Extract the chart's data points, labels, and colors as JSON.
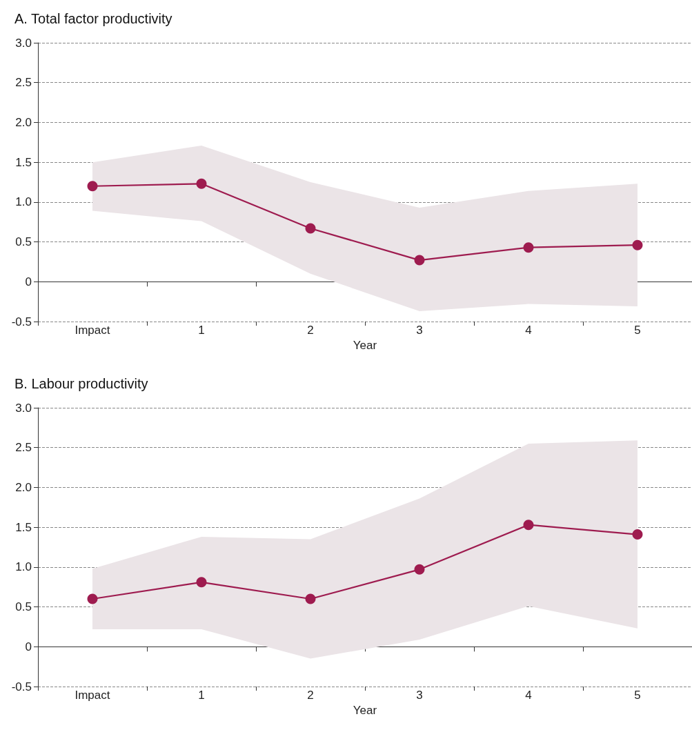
{
  "chart_data": [
    {
      "type": "line",
      "title": "A. Total factor productivity",
      "xlabel": "Year",
      "categories": [
        "Impact",
        "1",
        "2",
        "3",
        "4",
        "5"
      ],
      "series": [
        {
          "color": "#9e1b4f",
          "values": [
            1.2,
            1.23,
            0.67,
            0.27,
            0.43,
            0.46
          ],
          "lower": [
            0.89,
            0.76,
            0.1,
            -0.37,
            -0.28,
            -0.31
          ],
          "upper": [
            1.5,
            1.71,
            1.25,
            0.93,
            1.14,
            1.23
          ]
        }
      ],
      "ylim": [
        -0.5,
        3.0
      ],
      "yticks": [
        {
          "value": -0.5,
          "label": "-0.5"
        },
        0,
        {
          "value": 0.5,
          "label": "0.5"
        },
        {
          "value": 1,
          "label": "1.0"
        },
        {
          "value": 1.5,
          "label": "1.5"
        },
        {
          "value": 2,
          "label": "2.0"
        },
        {
          "value": 2.5,
          "label": "2.5"
        },
        {
          "value": 3,
          "label": "3.0"
        }
      ],
      "grid": "y",
      "marker": "circle",
      "line_style": "solid"
    },
    {
      "type": "line",
      "title": "B. Labour productivity",
      "xlabel": "Year",
      "categories": [
        "Impact",
        "1",
        "2",
        "3",
        "4",
        "5"
      ],
      "series": [
        {
          "color": "#9e1b4f",
          "values": [
            0.6,
            0.81,
            0.6,
            0.97,
            1.53,
            1.41
          ],
          "lower": [
            0.22,
            0.22,
            -0.15,
            0.09,
            0.51,
            0.23
          ],
          "upper": [
            0.98,
            1.38,
            1.35,
            1.86,
            2.55,
            2.59
          ]
        }
      ],
      "ylim": [
        -0.5,
        3.0
      ],
      "yticks": [
        {
          "value": -0.5,
          "label": "-0.5"
        },
        0,
        {
          "value": 0.5,
          "label": "0.5"
        },
        {
          "value": 1,
          "label": "1.0"
        },
        {
          "value": 1.5,
          "label": "1.5"
        },
        {
          "value": 2,
          "label": "2.0"
        },
        {
          "value": 2.5,
          "label": "2.5"
        },
        {
          "value": 3,
          "label": "3.0"
        }
      ],
      "grid": "y",
      "marker": "circle",
      "line_style": "solid"
    }
  ]
}
